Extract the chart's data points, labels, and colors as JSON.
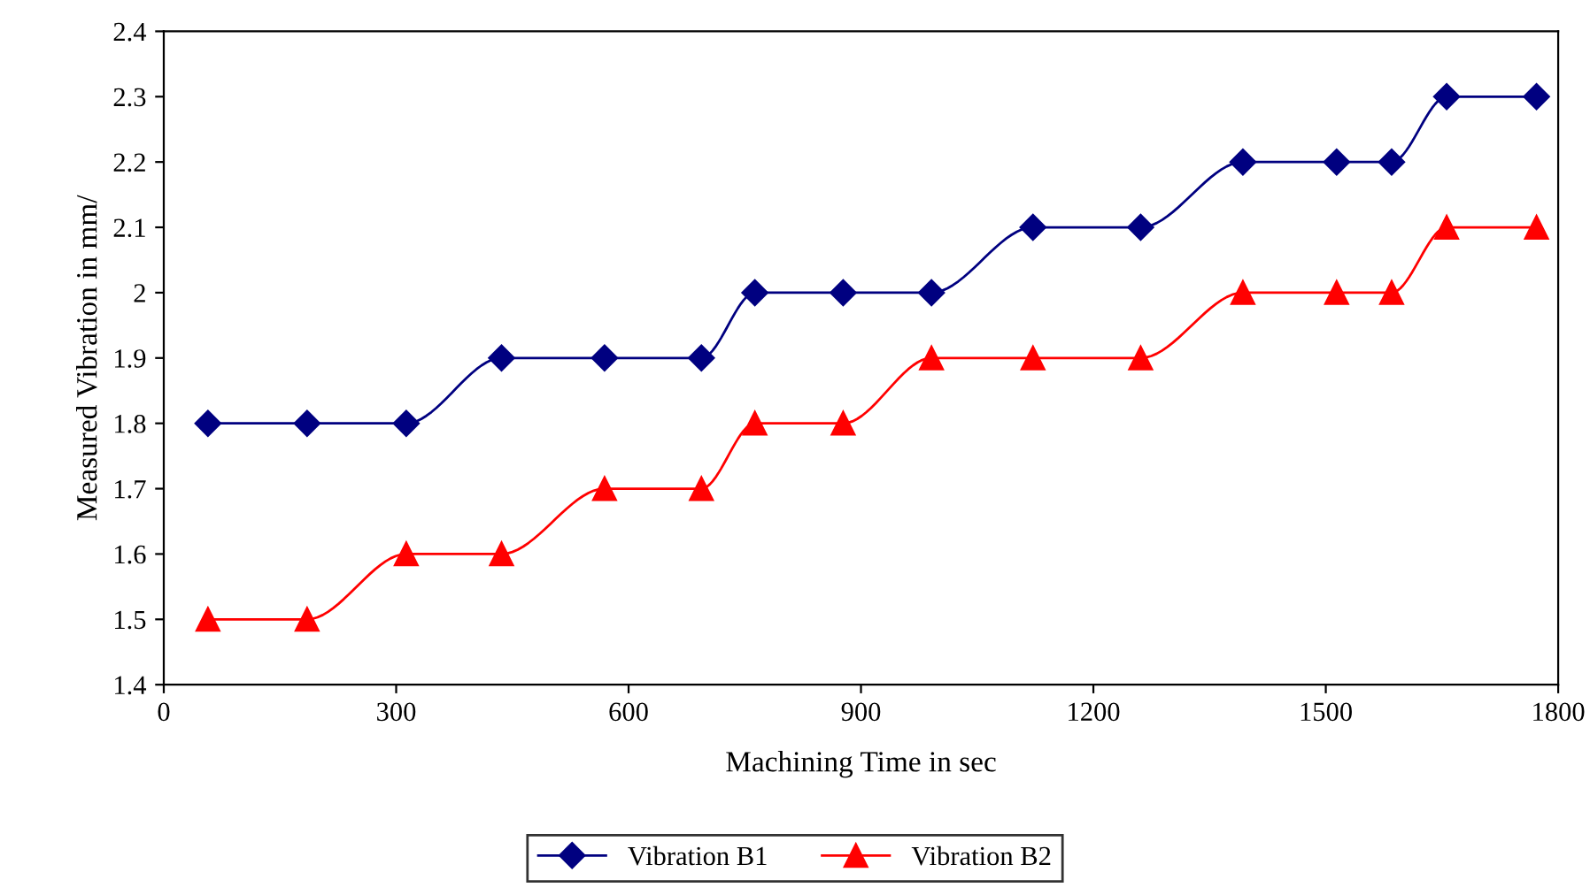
{
  "chart_data": {
    "type": "line",
    "xlabel": "Machining Time in sec",
    "ylabel": "Measured Vibration in mm/",
    "x": [
      57,
      185,
      313,
      436,
      569,
      694,
      763,
      877,
      991,
      1122,
      1261,
      1393,
      1514,
      1585,
      1656,
      1772
    ],
    "series": [
      {
        "name": "Vibration B1",
        "color": "#000080",
        "marker": "diamond",
        "values": [
          1.8,
          1.8,
          1.8,
          1.9,
          1.9,
          1.9,
          2.0,
          2.0,
          2.0,
          2.1,
          2.1,
          2.2,
          2.2,
          2.2,
          2.3,
          2.3
        ]
      },
      {
        "name": "Vibration B2",
        "color": "#ff0000",
        "marker": "triangle",
        "values": [
          1.5,
          1.5,
          1.6,
          1.6,
          1.7,
          1.7,
          1.8,
          1.8,
          1.9,
          1.9,
          1.9,
          2.0,
          2.0,
          2.0,
          2.1,
          2.1
        ]
      }
    ],
    "xlim": [
      0,
      1800
    ],
    "xticks": [
      0,
      300,
      600,
      900,
      1200,
      1500,
      1800
    ],
    "ylim": [
      1.4,
      2.4
    ],
    "yticks": [
      1.4,
      1.5,
      1.6,
      1.7,
      1.8,
      1.9,
      2,
      2.1,
      2.2,
      2.3,
      2.4
    ],
    "grid": false,
    "legend": "bottom",
    "line_style": "solid"
  }
}
